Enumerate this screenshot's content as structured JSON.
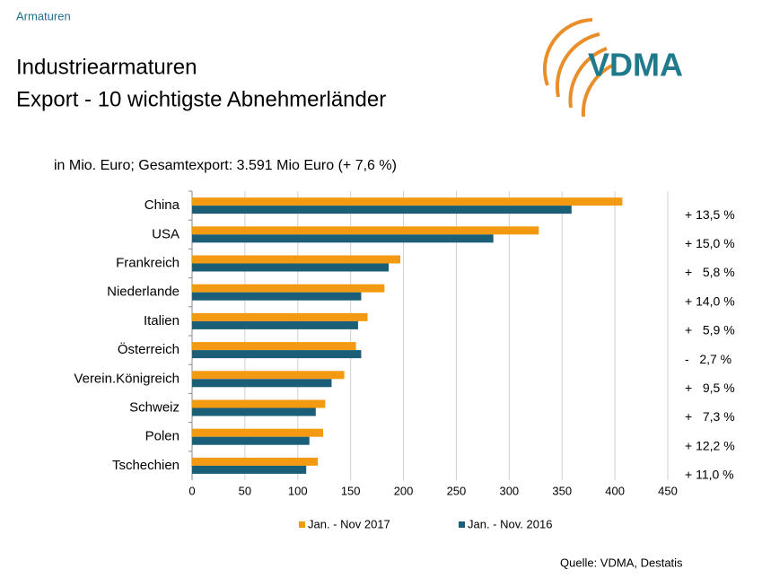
{
  "chart_data": {
    "type": "hbar",
    "header": "Armaturen",
    "logo_text": "VDMA",
    "title_lines": [
      "Industriearmaturen",
      "Export - 10 wichtigste Abnehmerländer"
    ],
    "subtitle": "in Mio. Euro; Gesamtexport: 3.591 Mio Euro (+ 7,6 %)",
    "source": "Quelle: VDMA, Destatis",
    "categories": [
      "China",
      "USA",
      "Frankreich",
      "Niederlande",
      "Italien",
      "Österreich",
      "Verein.Königreich",
      "Schweiz",
      "Polen",
      "Tschechien"
    ],
    "series": [
      {
        "name": "Jan. - Nov 2017",
        "color": "#f39a12",
        "values": [
          407,
          328,
          197,
          182,
          166,
          155,
          144,
          126,
          124,
          119
        ]
      },
      {
        "name": "Jan. - Nov. 2016",
        "color": "#1b5e78",
        "values": [
          359,
          285,
          186,
          160,
          157,
          160,
          132,
          117,
          111,
          108
        ]
      }
    ],
    "change_labels": [
      "+ 13,5 %",
      "+ 15,0 %",
      "+   5,8 %",
      "+ 14,0 %",
      "+   5,9 %",
      "-   2,7 %",
      "+   9,5 %",
      "+   7,3 %",
      "+ 12,2 %",
      "+ 11,0 %"
    ],
    "xlim": [
      0,
      450
    ],
    "xticks": [
      0,
      50,
      100,
      150,
      200,
      250,
      300,
      350,
      400,
      450
    ],
    "grid": true,
    "legend": "bottom"
  }
}
